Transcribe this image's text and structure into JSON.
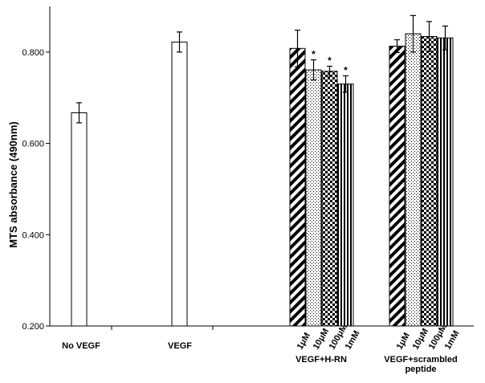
{
  "chart_data": {
    "type": "bar",
    "title": "",
    "ylabel": "MTS absorbance (490nm)",
    "xlabel": "",
    "ylim": [
      0.2,
      0.9
    ],
    "yticks": [
      "0.200",
      "0.400",
      "0.600",
      "0.800"
    ],
    "grid": false,
    "legend": "none",
    "groups": [
      {
        "label": "No VEGF",
        "label_lines": [
          "No VEGF"
        ],
        "bars": [
          {
            "sublabel": "",
            "value": 0.667,
            "error": 0.022,
            "pattern": "open",
            "significant": false
          }
        ]
      },
      {
        "label": "VEGF",
        "label_lines": [
          "VEGF"
        ],
        "bars": [
          {
            "sublabel": "",
            "value": 0.822,
            "error": 0.022,
            "pattern": "open",
            "significant": false
          }
        ]
      },
      {
        "label": "VEGF+H-RN",
        "label_lines": [
          "VEGF+H-RN"
        ],
        "bars": [
          {
            "sublabel": "1μM",
            "value": 0.808,
            "error": 0.04,
            "pattern": "diagonal",
            "significant": false
          },
          {
            "sublabel": "10μM",
            "value": 0.761,
            "error": 0.022,
            "pattern": "dotted",
            "significant": true
          },
          {
            "sublabel": "100μM",
            "value": 0.758,
            "error": 0.011,
            "pattern": "checker",
            "significant": true
          },
          {
            "sublabel": "1mM",
            "value": 0.73,
            "error": 0.018,
            "pattern": "vertical",
            "significant": true
          }
        ]
      },
      {
        "label": "VEGF+scrambled peptide",
        "label_lines": [
          "VEGF+scrambled",
          "peptide"
        ],
        "bars": [
          {
            "sublabel": "1μM",
            "value": 0.813,
            "error": 0.014,
            "pattern": "diagonal",
            "significant": false
          },
          {
            "sublabel": "10μM",
            "value": 0.84,
            "error": 0.04,
            "pattern": "dotted",
            "significant": false
          },
          {
            "sublabel": "100μM",
            "value": 0.834,
            "error": 0.033,
            "pattern": "checker",
            "significant": false
          },
          {
            "sublabel": "1mM",
            "value": 0.831,
            "error": 0.026,
            "pattern": "vertical",
            "significant": false
          }
        ]
      }
    ],
    "significance_marker": "*",
    "colors": {
      "bar_fill": "#ffffff",
      "stroke": "#000000",
      "pattern": "#000000"
    }
  }
}
